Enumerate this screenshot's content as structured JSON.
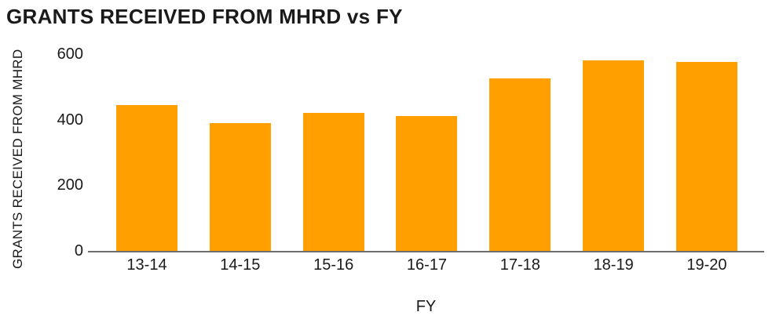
{
  "chart": {
    "title": "GRANTS RECEIVED FROM MHRD vs FY"
  },
  "chart_data": {
    "type": "bar",
    "title": "GRANTS RECEIVED FROM MHRD vs FY",
    "categories": [
      "13-14",
      "14-15",
      "15-16",
      "16-17",
      "17-18",
      "18-19",
      "19-20"
    ],
    "values": [
      445,
      390,
      420,
      410,
      525,
      580,
      575
    ],
    "xlabel": "FY",
    "ylabel": "GRANTS RECEIVED FROM MHRD",
    "ylim": [
      0,
      600
    ],
    "yticks": [
      0,
      200,
      400,
      600
    ],
    "grid": false,
    "legend_position": "none",
    "bar_color": "#FFA000",
    "axis_color": "#6E6E6E",
    "text_color": "#1A1A1A",
    "background_color": "#FFFFFF"
  }
}
